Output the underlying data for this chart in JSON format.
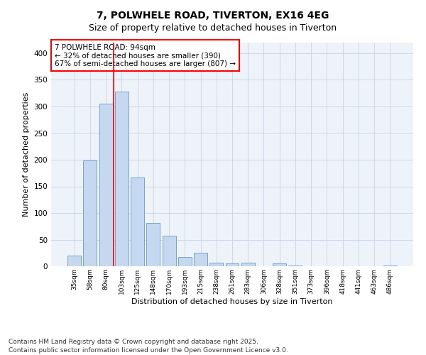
{
  "title_line1": "7, POLWHELE ROAD, TIVERTON, EX16 4EG",
  "title_line2": "Size of property relative to detached houses in Tiverton",
  "xlabel": "Distribution of detached houses by size in Tiverton",
  "ylabel": "Number of detached properties",
  "bar_color": "#c5d8f0",
  "bar_edge_color": "#6699cc",
  "background_color": "#eef2f9",
  "grid_color": "#c8d4e8",
  "categories": [
    "35sqm",
    "58sqm",
    "80sqm",
    "103sqm",
    "125sqm",
    "148sqm",
    "170sqm",
    "193sqm",
    "215sqm",
    "238sqm",
    "261sqm",
    "283sqm",
    "306sqm",
    "328sqm",
    "351sqm",
    "373sqm",
    "396sqm",
    "418sqm",
    "441sqm",
    "463sqm",
    "486sqm"
  ],
  "values": [
    20,
    198,
    305,
    328,
    167,
    82,
    57,
    18,
    25,
    7,
    5,
    7,
    0,
    5,
    2,
    0,
    0,
    0,
    0,
    0,
    2
  ],
  "ylim": [
    0,
    420
  ],
  "yticks": [
    0,
    50,
    100,
    150,
    200,
    250,
    300,
    350,
    400
  ],
  "redline_x": 2.5,
  "annotation_text": "7 POLWHELE ROAD: 94sqm\n← 32% of detached houses are smaller (390)\n67% of semi-detached houses are larger (807) →",
  "footnote": "Contains HM Land Registry data © Crown copyright and database right 2025.\nContains public sector information licensed under the Open Government Licence v3.0.",
  "title_fontsize": 10,
  "subtitle_fontsize": 9,
  "annotation_fontsize": 7.5,
  "footnote_fontsize": 6.5,
  "ylabel_fontsize": 8,
  "xlabel_fontsize": 8
}
